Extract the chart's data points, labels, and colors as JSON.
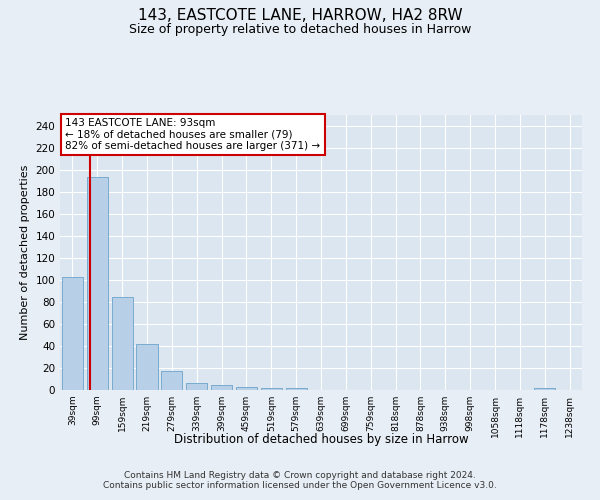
{
  "title1": "143, EASTCOTE LANE, HARROW, HA2 8RW",
  "title2": "Size of property relative to detached houses in Harrow",
  "xlabel": "Distribution of detached houses by size in Harrow",
  "ylabel": "Number of detached properties",
  "categories": [
    "39sqm",
    "99sqm",
    "159sqm",
    "219sqm",
    "279sqm",
    "339sqm",
    "399sqm",
    "459sqm",
    "519sqm",
    "579sqm",
    "639sqm",
    "699sqm",
    "759sqm",
    "818sqm",
    "878sqm",
    "938sqm",
    "998sqm",
    "1058sqm",
    "1118sqm",
    "1178sqm",
    "1238sqm"
  ],
  "values": [
    103,
    194,
    85,
    42,
    17,
    6,
    5,
    3,
    2,
    2,
    0,
    0,
    0,
    0,
    0,
    0,
    0,
    0,
    0,
    2,
    0
  ],
  "bar_color": "#b8cfe8",
  "bar_edge_color": "#7aaad0",
  "ylim": [
    0,
    250
  ],
  "yticks": [
    0,
    20,
    40,
    60,
    80,
    100,
    120,
    140,
    160,
    180,
    200,
    220,
    240
  ],
  "vline_x": 0.72,
  "vline_color": "#cc0000",
  "annotation_text": "143 EASTCOTE LANE: 93sqm\n← 18% of detached houses are smaller (79)\n82% of semi-detached houses are larger (371) →",
  "annotation_box_color": "#cc0000",
  "footer": "Contains HM Land Registry data © Crown copyright and database right 2024.\nContains public sector information licensed under the Open Government Licence v3.0.",
  "bg_color": "#e8eef5",
  "plot_bg_color": "#dce6f0"
}
